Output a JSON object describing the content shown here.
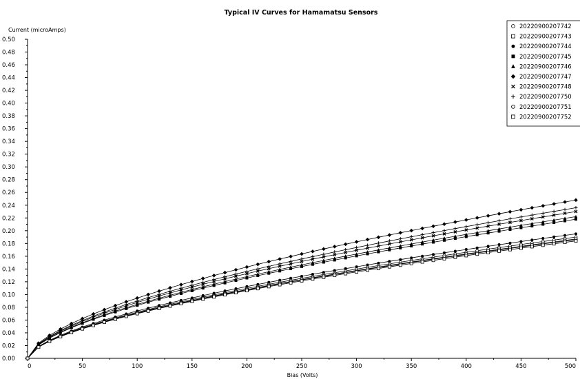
{
  "chart_data": {
    "type": "line",
    "title": "Typical IV Curves for Hamamatsu Sensors",
    "xlabel": "Bias (Volts)",
    "ylabel": "Current (microAmps)",
    "xlim": [
      0,
      500
    ],
    "ylim": [
      0,
      0.5
    ],
    "xticks": [
      0,
      50,
      100,
      150,
      200,
      250,
      300,
      350,
      400,
      450,
      500
    ],
    "yticks": [
      0,
      0.02,
      0.04,
      0.06,
      0.08,
      0.1,
      0.12,
      0.14,
      0.16,
      0.18,
      0.2,
      0.22,
      0.24,
      0.26,
      0.28,
      0.3,
      0.32,
      0.34,
      0.36,
      0.38,
      0.4,
      0.42,
      0.44,
      0.46,
      0.48,
      0.5
    ],
    "grid": false,
    "legend_position": "top-right",
    "x": [
      0,
      10,
      20,
      30,
      40,
      50,
      60,
      70,
      80,
      90,
      100,
      110,
      120,
      130,
      140,
      150,
      160,
      170,
      180,
      190,
      200,
      210,
      220,
      230,
      240,
      250,
      260,
      270,
      280,
      290,
      300,
      310,
      320,
      330,
      340,
      350,
      360,
      370,
      380,
      390,
      400,
      410,
      420,
      430,
      440,
      450,
      460,
      470,
      480,
      490,
      500
    ],
    "series": [
      {
        "name": "20220900207742",
        "marker": "circle-open",
        "end_value": 0.19
      },
      {
        "name": "20220900207743",
        "marker": "square-open",
        "end_value": 0.186
      },
      {
        "name": "20220900207744",
        "marker": "circle-filled",
        "end_value": 0.195
      },
      {
        "name": "20220900207745",
        "marker": "square-filled",
        "end_value": 0.218
      },
      {
        "name": "20220900207746",
        "marker": "triangle-filled",
        "end_value": 0.222
      },
      {
        "name": "20220900207747",
        "marker": "diamond-filled",
        "end_value": 0.248
      },
      {
        "name": "20220900207748",
        "marker": "cross-x",
        "end_value": 0.23
      },
      {
        "name": "20220900207750",
        "marker": "plus",
        "end_value": 0.236
      },
      {
        "name": "20220900207751",
        "marker": "circle-open",
        "end_value": 0.187
      },
      {
        "name": "20220900207752",
        "marker": "square-open",
        "end_value": 0.184
      }
    ],
    "curve_model": "current = end_value * (bias / 500) ^ 0.6 for bias >= 10; near-linear from 0 to 0.026 below 10 V"
  }
}
